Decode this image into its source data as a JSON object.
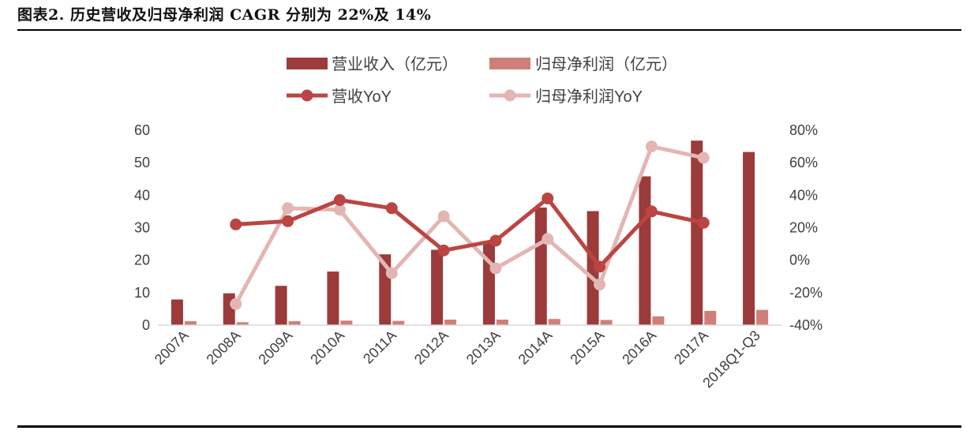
{
  "figure": {
    "title": "图表2.   历史营收及归母净利润 CAGR 分别为 22%及 14%"
  },
  "colors": {
    "revenue_bar": "#9b3b3b",
    "profit_bar": "#cf7f7a",
    "revenue_yoy": "#bb4542",
    "profit_yoy": "#e3b6b3",
    "axis_text": "#404040",
    "axis_line": "#d9d9d9"
  },
  "chart_data": {
    "type": "bar",
    "categories": [
      "2007A",
      "2008A",
      "2009A",
      "2010A",
      "2011A",
      "2012A",
      "2013A",
      "2014A",
      "2015A",
      "2016A",
      "2017A",
      "2018Q1-Q3"
    ],
    "y_left": {
      "lim": [
        0,
        60
      ],
      "ticks": [
        "0",
        "10",
        "20",
        "30",
        "40",
        "50",
        "60"
      ]
    },
    "y_right": {
      "lim": [
        -40,
        80
      ],
      "ticks": [
        "-40%",
        "-20%",
        "0%",
        "20%",
        "40%",
        "60%",
        "80%"
      ]
    },
    "series": [
      {
        "name": "营业收入（亿元）",
        "type": "bar",
        "axis": "left",
        "values": [
          7.9,
          9.8,
          12.1,
          16.5,
          21.8,
          23.2,
          25.8,
          36.2,
          35.1,
          45.8,
          56.8,
          53.3
        ]
      },
      {
        "name": "归母净利润（亿元）",
        "type": "bar",
        "axis": "left",
        "values": [
          1.2,
          0.9,
          1.2,
          1.4,
          1.3,
          1.7,
          1.7,
          1.9,
          1.6,
          2.7,
          4.4,
          4.7
        ]
      },
      {
        "name": "营收YoY",
        "type": "line",
        "axis": "right",
        "values": [
          null,
          22,
          24,
          37,
          32,
          6,
          12,
          38,
          -4,
          30,
          23,
          null
        ]
      },
      {
        "name": "归母净利润YoY",
        "type": "line",
        "axis": "right",
        "values": [
          null,
          -27,
          32,
          31,
          -8,
          27,
          -5,
          13,
          -15,
          70,
          63,
          null
        ]
      }
    ],
    "legend_position": "top",
    "grid": false
  }
}
